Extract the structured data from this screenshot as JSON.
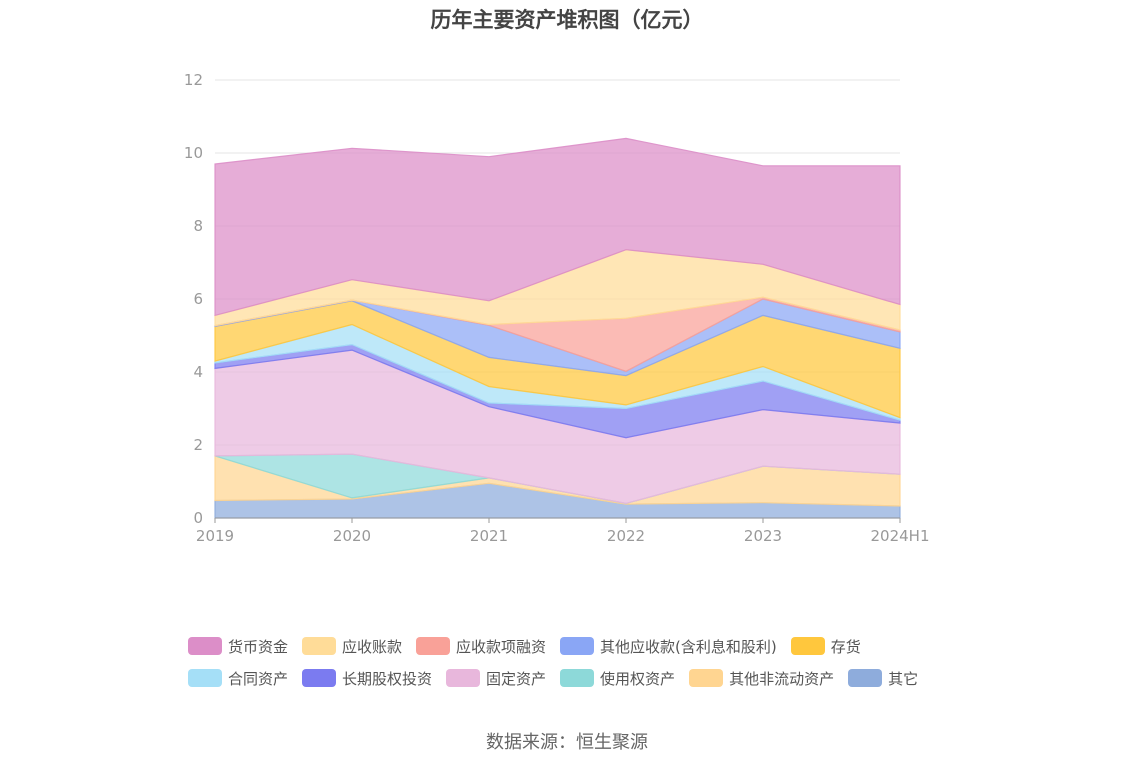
{
  "title": "历年主要资产堆积图（亿元）",
  "source": "数据来源：恒生聚源",
  "chart_data": {
    "type": "area",
    "stacked": true,
    "categories": [
      "2019",
      "2020",
      "2021",
      "2022",
      "2023",
      "2024H1"
    ],
    "ylim": [
      0,
      12
    ],
    "yticks": [
      0,
      2,
      4,
      6,
      8,
      10,
      12
    ],
    "grid": true,
    "legend_position": "bottom",
    "series": [
      {
        "name": "其它",
        "color": "#8eacdc",
        "values": [
          0.48,
          0.52,
          0.95,
          0.38,
          0.42,
          0.33
        ]
      },
      {
        "name": "其他非流动资产",
        "color": "#ffd591",
        "values": [
          1.22,
          0.03,
          0.15,
          0.02,
          1.0,
          0.87
        ]
      },
      {
        "name": "使用权资产",
        "color": "#8dd9d9",
        "values": [
          0.0,
          1.2,
          0.0,
          0.0,
          0.0,
          0.0
        ]
      },
      {
        "name": "固定资产",
        "color": "#e8b7dc",
        "values": [
          2.4,
          2.85,
          1.95,
          1.8,
          1.55,
          1.4
        ]
      },
      {
        "name": "长期股权投资",
        "color": "#7b7bf0",
        "values": [
          0.15,
          0.15,
          0.1,
          0.8,
          0.78,
          0.08
        ]
      },
      {
        "name": "合同资产",
        "color": "#a5dff7",
        "values": [
          0.05,
          0.55,
          0.45,
          0.1,
          0.4,
          0.07
        ]
      },
      {
        "name": "存货",
        "color": "#ffc73d",
        "values": [
          0.95,
          0.65,
          0.8,
          0.8,
          1.4,
          1.9
        ]
      },
      {
        "name": "其他应收款(含利息和股利)",
        "color": "#8aa6f5",
        "values": [
          0.02,
          0.02,
          0.88,
          0.12,
          0.45,
          0.45
        ]
      },
      {
        "name": "应收款项融资",
        "color": "#f9a198",
        "values": [
          0.0,
          0.0,
          0.02,
          1.45,
          0.05,
          0.05
        ]
      },
      {
        "name": "应收账款",
        "color": "#ffdc98",
        "values": [
          0.28,
          0.56,
          0.65,
          1.88,
          0.9,
          0.7
        ]
      },
      {
        "name": "货币资金",
        "color": "#dc8ec8",
        "values": [
          4.15,
          3.6,
          3.95,
          3.05,
          2.7,
          3.8
        ]
      }
    ]
  },
  "legend": {
    "rows": [
      [
        "货币资金",
        "应收账款",
        "应收款项融资",
        "其他应收款(含利息和股利)",
        "存货"
      ],
      [
        "合同资产",
        "长期股权投资",
        "固定资产",
        "使用权资产",
        "其他非流动资产",
        "其它"
      ]
    ]
  }
}
